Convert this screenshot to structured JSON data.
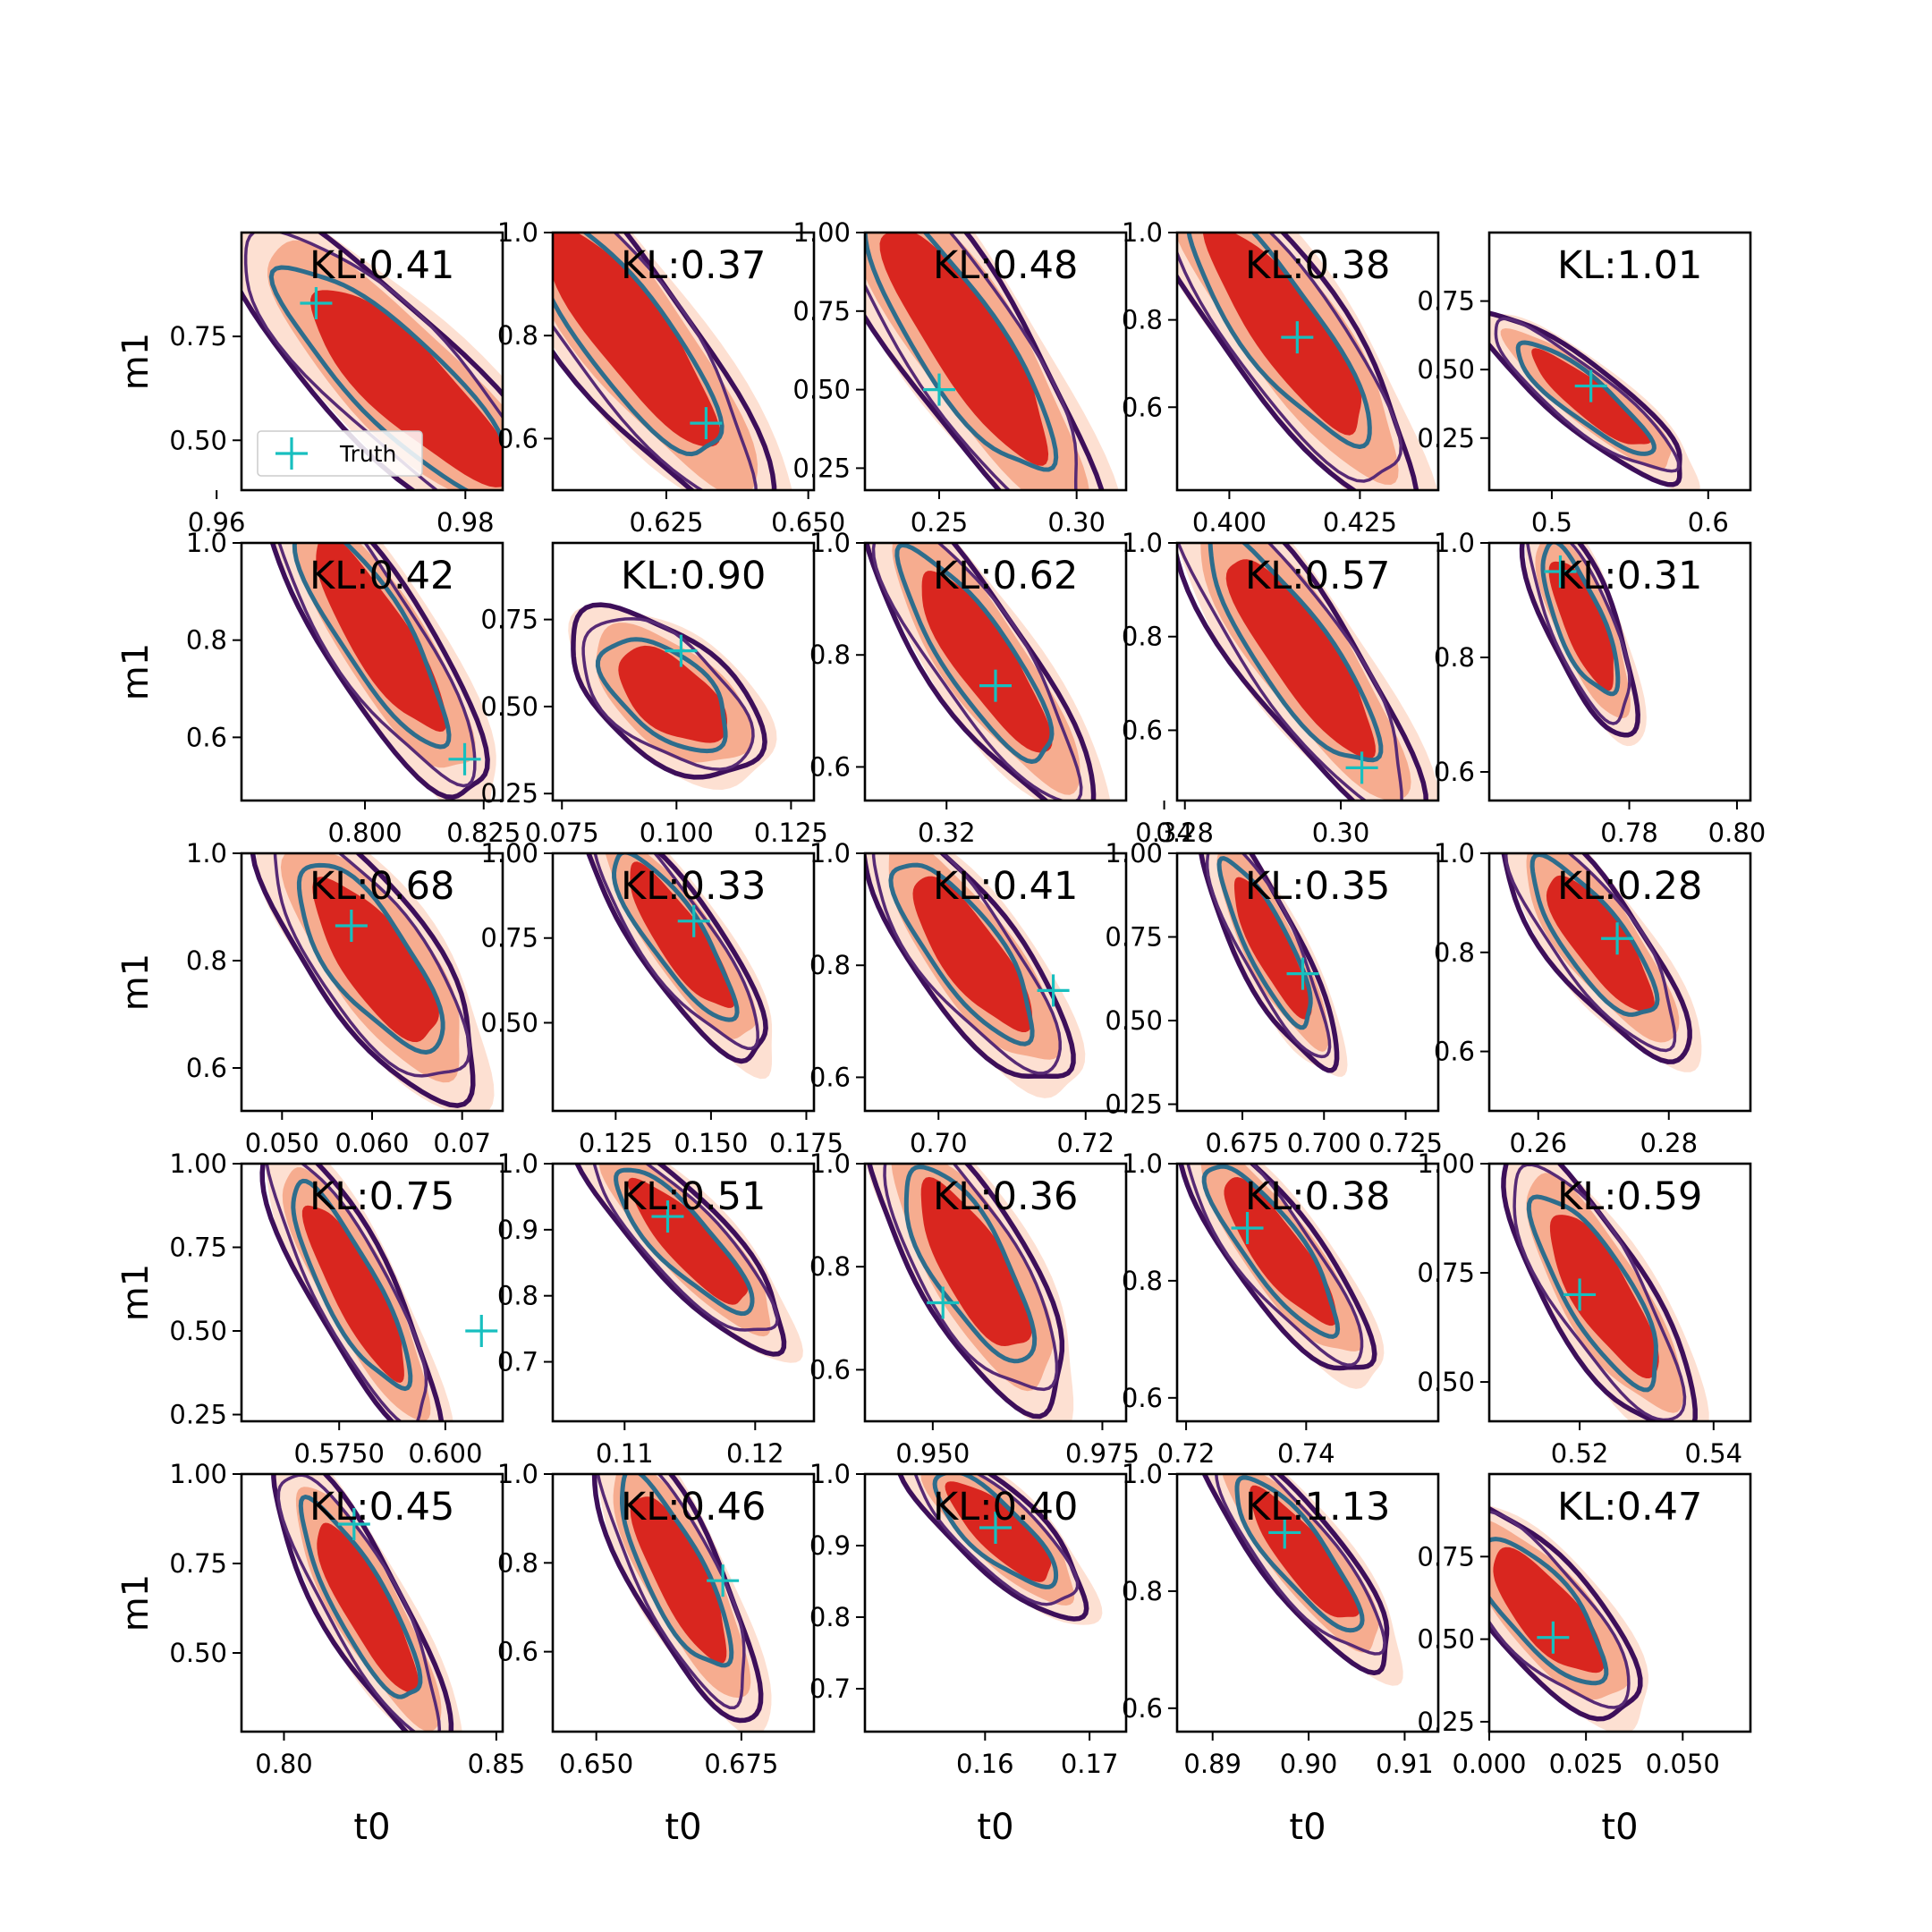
{
  "chart_data": {
    "type": "contour",
    "layout": {
      "rows": 5,
      "cols": 5
    },
    "xlabel": "t0",
    "ylabel": "m1",
    "legend": {
      "label": "Truth",
      "marker": "+",
      "color": "#17bfbf",
      "panel": 0,
      "placement": "lower-left"
    },
    "colors": {
      "fill_light": "#fde0d2",
      "fill_mid": "#f6ac8f",
      "fill_dark": "#d9261f",
      "contour_outer": "#3d0f5a",
      "contour_mid": "#572a75",
      "contour_inner": "#2e6d8c",
      "truth": "#17bfbf"
    },
    "panels": [
      {
        "kl": "KL:0.41",
        "xlim": [
          0.962,
          0.983
        ],
        "ylim": [
          0.38,
          1.0
        ],
        "xticks": [
          [
            0.96,
            "0.96"
          ],
          [
            0.98,
            "0.98"
          ]
        ],
        "yticks": [
          [
            0.5,
            "0.50"
          ],
          [
            0.75,
            "0.75"
          ]
        ],
        "center": [
          0.9755,
          0.63
        ],
        "sx": 0.0065,
        "sy": 0.19,
        "rho": -0.85,
        "truth": [
          0.968,
          0.83
        ]
      },
      {
        "kl": "KL:0.37",
        "xlim": [
          0.605,
          0.651
        ],
        "ylim": [
          0.5,
          1.0
        ],
        "xticks": [
          [
            0.625,
            "0.625"
          ],
          [
            0.65,
            "0.650"
          ]
        ],
        "yticks": [
          [
            0.6,
            "0.6"
          ],
          [
            0.8,
            "0.8"
          ],
          [
            1.0,
            "1.0"
          ]
        ],
        "center": [
          0.619,
          0.8
        ],
        "sx": 0.012,
        "sy": 0.17,
        "rho": -0.85,
        "truth": [
          0.632,
          0.63
        ]
      },
      {
        "kl": "KL:0.48",
        "xlim": [
          0.223,
          0.318
        ],
        "ylim": [
          0.18,
          1.0
        ],
        "xticks": [
          [
            0.25,
            "0.25"
          ],
          [
            0.3,
            "0.30"
          ]
        ],
        "yticks": [
          [
            0.25,
            "0.25"
          ],
          [
            0.5,
            "0.50"
          ],
          [
            0.75,
            "0.75"
          ],
          [
            1.0,
            "1.00"
          ]
        ],
        "center": [
          0.26,
          0.65
        ],
        "sx": 0.024,
        "sy": 0.3,
        "rho": -0.85,
        "truth": [
          0.25,
          0.5
        ]
      },
      {
        "kl": "KL:0.38",
        "xlim": [
          0.39,
          0.44
        ],
        "ylim": [
          0.41,
          1.0
        ],
        "xticks": [
          [
            0.4,
            "0.400"
          ],
          [
            0.425,
            "0.425"
          ]
        ],
        "yticks": [
          [
            0.6,
            "0.6"
          ],
          [
            0.8,
            "0.8"
          ],
          [
            1.0,
            "1.0"
          ]
        ],
        "center": [
          0.411,
          0.78
        ],
        "sx": 0.012,
        "sy": 0.19,
        "rho": -0.85,
        "truth": [
          0.413,
          0.76
        ]
      },
      {
        "kl": "KL:1.01",
        "xlim": [
          0.46,
          0.627
        ],
        "ylim": [
          0.06,
          1.0
        ],
        "xticks": [
          [
            0.5,
            "0.5"
          ],
          [
            0.6,
            "0.6"
          ]
        ],
        "yticks": [
          [
            0.25,
            "0.25"
          ],
          [
            0.5,
            "0.50"
          ],
          [
            0.75,
            "0.75"
          ]
        ],
        "center": [
          0.525,
          0.39
        ],
        "sx": 0.03,
        "sy": 0.14,
        "rho": -0.88,
        "truth": [
          0.525,
          0.44
        ]
      },
      {
        "kl": "KL:0.42",
        "xlim": [
          0.774,
          0.829
        ],
        "ylim": [
          0.47,
          1.0
        ],
        "xticks": [
          [
            0.8,
            "0.800"
          ],
          [
            0.825,
            "0.825"
          ]
        ],
        "yticks": [
          [
            0.6,
            "0.6"
          ],
          [
            0.8,
            "0.8"
          ],
          [
            1.0,
            "1.0"
          ]
        ],
        "center": [
          0.803,
          0.81
        ],
        "sx": 0.011,
        "sy": 0.16,
        "rho": -0.85,
        "truth": [
          0.821,
          0.555
        ]
      },
      {
        "kl": "KL:0.90",
        "xlim": [
          0.073,
          0.13
        ],
        "ylim": [
          0.23,
          0.97
        ],
        "xticks": [
          [
            0.075,
            "0.075"
          ],
          [
            0.1,
            "0.100"
          ],
          [
            0.125,
            "0.125"
          ]
        ],
        "yticks": [
          [
            0.25,
            "0.25"
          ],
          [
            0.5,
            "0.50"
          ],
          [
            0.75,
            "0.75"
          ]
        ],
        "center": [
          0.099,
          0.53
        ],
        "sx": 0.0095,
        "sy": 0.11,
        "rho": -0.55,
        "truth": [
          0.101,
          0.66
        ]
      },
      {
        "kl": "KL:0.62",
        "xlim": [
          0.3125,
          0.3365
        ],
        "ylim": [
          0.54,
          1.0
        ],
        "xticks": [
          [
            0.32,
            "0.32"
          ],
          [
            0.34,
            "0.34"
          ]
        ],
        "yticks": [
          [
            0.6,
            "0.6"
          ],
          [
            0.8,
            "0.8"
          ],
          [
            1.0,
            "1.0"
          ]
        ],
        "center": [
          0.3235,
          0.79
        ],
        "sx": 0.0048,
        "sy": 0.13,
        "rho": -0.85,
        "truth": [
          0.3245,
          0.745
        ]
      },
      {
        "kl": "KL:0.57",
        "xlim": [
          0.279,
          0.3125
        ],
        "ylim": [
          0.45,
          1.0
        ],
        "xticks": [
          [
            0.28,
            "0.28"
          ],
          [
            0.3,
            "0.30"
          ]
        ],
        "yticks": [
          [
            0.6,
            "0.6"
          ],
          [
            0.8,
            "0.8"
          ],
          [
            1.0,
            "1.0"
          ]
        ],
        "center": [
          0.295,
          0.76
        ],
        "sx": 0.0075,
        "sy": 0.17,
        "rho": -0.85,
        "truth": [
          0.3027,
          0.52
        ]
      },
      {
        "kl": "KL:0.31",
        "xlim": [
          0.754,
          0.8025
        ],
        "ylim": [
          0.55,
          1.0
        ],
        "xticks": [
          [
            0.78,
            "0.78"
          ],
          [
            0.8,
            "0.80"
          ]
        ],
        "yticks": [
          [
            0.6,
            "0.6"
          ],
          [
            0.8,
            "0.8"
          ],
          [
            1.0,
            "1.0"
          ]
        ],
        "center": [
          0.7715,
          0.86
        ],
        "sx": 0.0048,
        "sy": 0.09,
        "rho": -0.75,
        "truth": [
          0.7672,
          0.95
        ]
      },
      {
        "kl": "KL:0.68",
        "xlim": [
          0.0455,
          0.0745
        ],
        "ylim": [
          0.52,
          1.0
        ],
        "xticks": [
          [
            0.05,
            "0.050"
          ],
          [
            0.06,
            "0.060"
          ],
          [
            0.07,
            "0.07"
          ]
        ],
        "yticks": [
          [
            0.6,
            "0.6"
          ],
          [
            0.8,
            "0.8"
          ],
          [
            1.0,
            "1.0"
          ]
        ],
        "center": [
          0.0605,
          0.8
        ],
        "sx": 0.0055,
        "sy": 0.12,
        "rho": -0.75,
        "truth": [
          0.0577,
          0.865
        ]
      },
      {
        "kl": "KL:0.33",
        "xlim": [
          0.1085,
          0.177
        ],
        "ylim": [
          0.24,
          1.0
        ],
        "xticks": [
          [
            0.125,
            "0.125"
          ],
          [
            0.15,
            "0.150"
          ],
          [
            0.175,
            "0.175"
          ]
        ],
        "yticks": [
          [
            0.5,
            "0.50"
          ],
          [
            0.75,
            "0.75"
          ],
          [
            1.0,
            "1.00"
          ]
        ],
        "center": [
          0.142,
          0.75
        ],
        "sx": 0.011,
        "sy": 0.17,
        "rho": -0.85,
        "truth": [
          0.1455,
          0.8
        ]
      },
      {
        "kl": "KL:0.41",
        "xlim": [
          0.69,
          0.7255
        ],
        "ylim": [
          0.54,
          1.0
        ],
        "xticks": [
          [
            0.7,
            "0.70"
          ],
          [
            0.72,
            "0.72"
          ]
        ],
        "yticks": [
          [
            0.6,
            "0.6"
          ],
          [
            0.8,
            "0.8"
          ],
          [
            1.0,
            "1.0"
          ]
        ],
        "center": [
          0.7045,
          0.82
        ],
        "sx": 0.0065,
        "sy": 0.11,
        "rho": -0.8,
        "truth": [
          0.7156,
          0.755
        ]
      },
      {
        "kl": "KL:0.35",
        "xlim": [
          0.655,
          0.735
        ],
        "ylim": [
          0.23,
          1.0
        ],
        "xticks": [
          [
            0.675,
            "0.675"
          ],
          [
            0.7,
            "0.700"
          ],
          [
            0.725,
            "0.725"
          ]
        ],
        "yticks": [
          [
            0.25,
            "0.25"
          ],
          [
            0.5,
            "0.50"
          ],
          [
            0.75,
            "0.75"
          ],
          [
            1.0,
            "1.00"
          ]
        ],
        "center": [
          0.684,
          0.72
        ],
        "sx": 0.0095,
        "sy": 0.17,
        "rho": -0.85,
        "truth": [
          0.6935,
          0.64
        ]
      },
      {
        "kl": "KL:0.28",
        "xlim": [
          0.2525,
          0.2925
        ],
        "ylim": [
          0.48,
          1.0
        ],
        "xticks": [
          [
            0.26,
            "0.26"
          ],
          [
            0.28,
            "0.28"
          ]
        ],
        "yticks": [
          [
            0.6,
            "0.6"
          ],
          [
            0.8,
            "0.8"
          ],
          [
            1.0,
            "1.0"
          ]
        ],
        "center": [
          0.2695,
          0.82
        ],
        "sx": 0.0065,
        "sy": 0.11,
        "rho": -0.8,
        "truth": [
          0.2721,
          0.828
        ]
      },
      {
        "kl": "KL:0.75",
        "xlim": [
          0.552,
          0.6135
        ],
        "ylim": [
          0.23,
          1.0
        ],
        "xticks": [
          [
            0.575,
            "0.5750"
          ],
          [
            0.6,
            "0.600"
          ]
        ],
        "yticks": [
          [
            0.25,
            "0.25"
          ],
          [
            0.5,
            "0.50"
          ],
          [
            0.75,
            "0.75"
          ],
          [
            1.0,
            "1.00"
          ]
        ],
        "center": [
          0.579,
          0.62
        ],
        "sx": 0.0095,
        "sy": 0.21,
        "rho": -0.85,
        "truth": [
          0.6085,
          0.5
        ]
      },
      {
        "kl": "KL:0.51",
        "xlim": [
          0.1045,
          0.1245
        ],
        "ylim": [
          0.61,
          1.0
        ],
        "xticks": [
          [
            0.11,
            "0.11"
          ],
          [
            0.12,
            "0.12"
          ]
        ],
        "yticks": [
          [
            0.7,
            "0.7"
          ],
          [
            0.8,
            "0.8"
          ],
          [
            0.9,
            "0.9"
          ],
          [
            1.0,
            "1.0"
          ]
        ],
        "center": [
          0.115,
          0.88
        ],
        "sx": 0.0036,
        "sy": 0.075,
        "rho": -0.85,
        "truth": [
          0.1133,
          0.92
        ]
      },
      {
        "kl": "KL:0.36",
        "xlim": [
          0.94,
          0.9785
        ],
        "ylim": [
          0.5,
          1.0
        ],
        "xticks": [
          [
            0.95,
            "0.950"
          ],
          [
            0.975,
            "0.975"
          ]
        ],
        "yticks": [
          [
            0.6,
            "0.6"
          ],
          [
            0.8,
            "0.8"
          ],
          [
            1.0,
            "1.0"
          ]
        ],
        "center": [
          0.9562,
          0.8
        ],
        "sx": 0.0065,
        "sy": 0.13,
        "rho": -0.75,
        "truth": [
          0.9515,
          0.73
        ]
      },
      {
        "kl": "KL:0.38",
        "xlim": [
          0.7185,
          0.762
        ],
        "ylim": [
          0.56,
          1.0
        ],
        "xticks": [
          [
            0.72,
            "0.72"
          ],
          [
            0.74,
            "0.74"
          ]
        ],
        "yticks": [
          [
            0.6,
            "0.6"
          ],
          [
            0.8,
            "0.8"
          ],
          [
            1.0,
            "1.0"
          ]
        ],
        "center": [
          0.7355,
          0.85
        ],
        "sx": 0.0075,
        "sy": 0.1,
        "rho": -0.85,
        "truth": [
          0.7302,
          0.89
        ]
      },
      {
        "kl": "KL:0.59",
        "xlim": [
          0.5065,
          0.5455
        ],
        "ylim": [
          0.41,
          1.0
        ],
        "xticks": [
          [
            0.52,
            "0.52"
          ],
          [
            0.54,
            "0.54"
          ]
        ],
        "yticks": [
          [
            0.5,
            "0.50"
          ],
          [
            0.75,
            "0.75"
          ],
          [
            1.0,
            "1.00"
          ]
        ],
        "center": [
          0.5235,
          0.7
        ],
        "sx": 0.0065,
        "sy": 0.15,
        "rho": -0.8,
        "truth": [
          0.52,
          0.7
        ]
      },
      {
        "kl": "KL:0.45",
        "xlim": [
          0.79,
          0.8515
        ],
        "ylim": [
          0.28,
          1.0
        ],
        "xticks": [
          [
            0.8,
            "0.80"
          ],
          [
            0.85,
            "0.85"
          ]
        ],
        "yticks": [
          [
            0.5,
            "0.50"
          ],
          [
            0.75,
            "0.75"
          ],
          [
            1.0,
            "1.00"
          ]
        ],
        "center": [
          0.8195,
          0.63
        ],
        "sx": 0.0095,
        "sy": 0.19,
        "rho": -0.85,
        "truth": [
          0.8165,
          0.86
        ]
      },
      {
        "kl": "KL:0.46",
        "xlim": [
          0.6425,
          0.6875
        ],
        "ylim": [
          0.42,
          1.0
        ],
        "xticks": [
          [
            0.65,
            "0.650"
          ],
          [
            0.675,
            "0.675"
          ]
        ],
        "yticks": [
          [
            0.6,
            "0.6"
          ],
          [
            0.8,
            "0.8"
          ],
          [
            1.0,
            "1.0"
          ]
        ],
        "center": [
          0.6645,
          0.77
        ],
        "sx": 0.0065,
        "sy": 0.15,
        "rho": -0.8,
        "truth": [
          0.6718,
          0.76
        ]
      },
      {
        "kl": "KL:0.40",
        "xlim": [
          0.1485,
          0.1735
        ],
        "ylim": [
          0.64,
          1.0
        ],
        "xticks": [
          [
            0.16,
            "0.16"
          ],
          [
            0.17,
            "0.17"
          ]
        ],
        "yticks": [
          [
            0.7,
            "0.7"
          ],
          [
            0.8,
            "0.8"
          ],
          [
            0.9,
            "0.9"
          ],
          [
            1.0,
            "1.0"
          ]
        ],
        "center": [
          0.1615,
          0.92
        ],
        "sx": 0.004,
        "sy": 0.055,
        "rho": -0.8,
        "truth": [
          0.161,
          0.925
        ]
      },
      {
        "kl": "KL:1.13",
        "xlim": [
          0.8863,
          0.9135
        ],
        "ylim": [
          0.56,
          1.0
        ],
        "xticks": [
          [
            0.89,
            "0.89"
          ],
          [
            0.9,
            "0.90"
          ],
          [
            0.91,
            "0.91"
          ]
        ],
        "yticks": [
          [
            0.6,
            "0.6"
          ],
          [
            0.8,
            "0.8"
          ],
          [
            1.0,
            "1.0"
          ]
        ],
        "center": [
          0.8995,
          0.86
        ],
        "sx": 0.0045,
        "sy": 0.09,
        "rho": -0.85,
        "truth": [
          0.8975,
          0.9
        ]
      },
      {
        "kl": "KL:0.47",
        "xlim": [
          0.0,
          0.0675
        ],
        "ylim": [
          0.22,
          1.0
        ],
        "xticks": [
          [
            0.0,
            "0.000"
          ],
          [
            0.025,
            "0.025"
          ],
          [
            0.05,
            "0.050"
          ]
        ],
        "yticks": [
          [
            0.25,
            "0.25"
          ],
          [
            0.5,
            "0.50"
          ],
          [
            0.75,
            "0.75"
          ]
        ],
        "center": [
          0.015,
          0.58
        ],
        "sx": 0.0115,
        "sy": 0.15,
        "rho": -0.75,
        "truth": [
          0.0165,
          0.505
        ]
      }
    ]
  }
}
